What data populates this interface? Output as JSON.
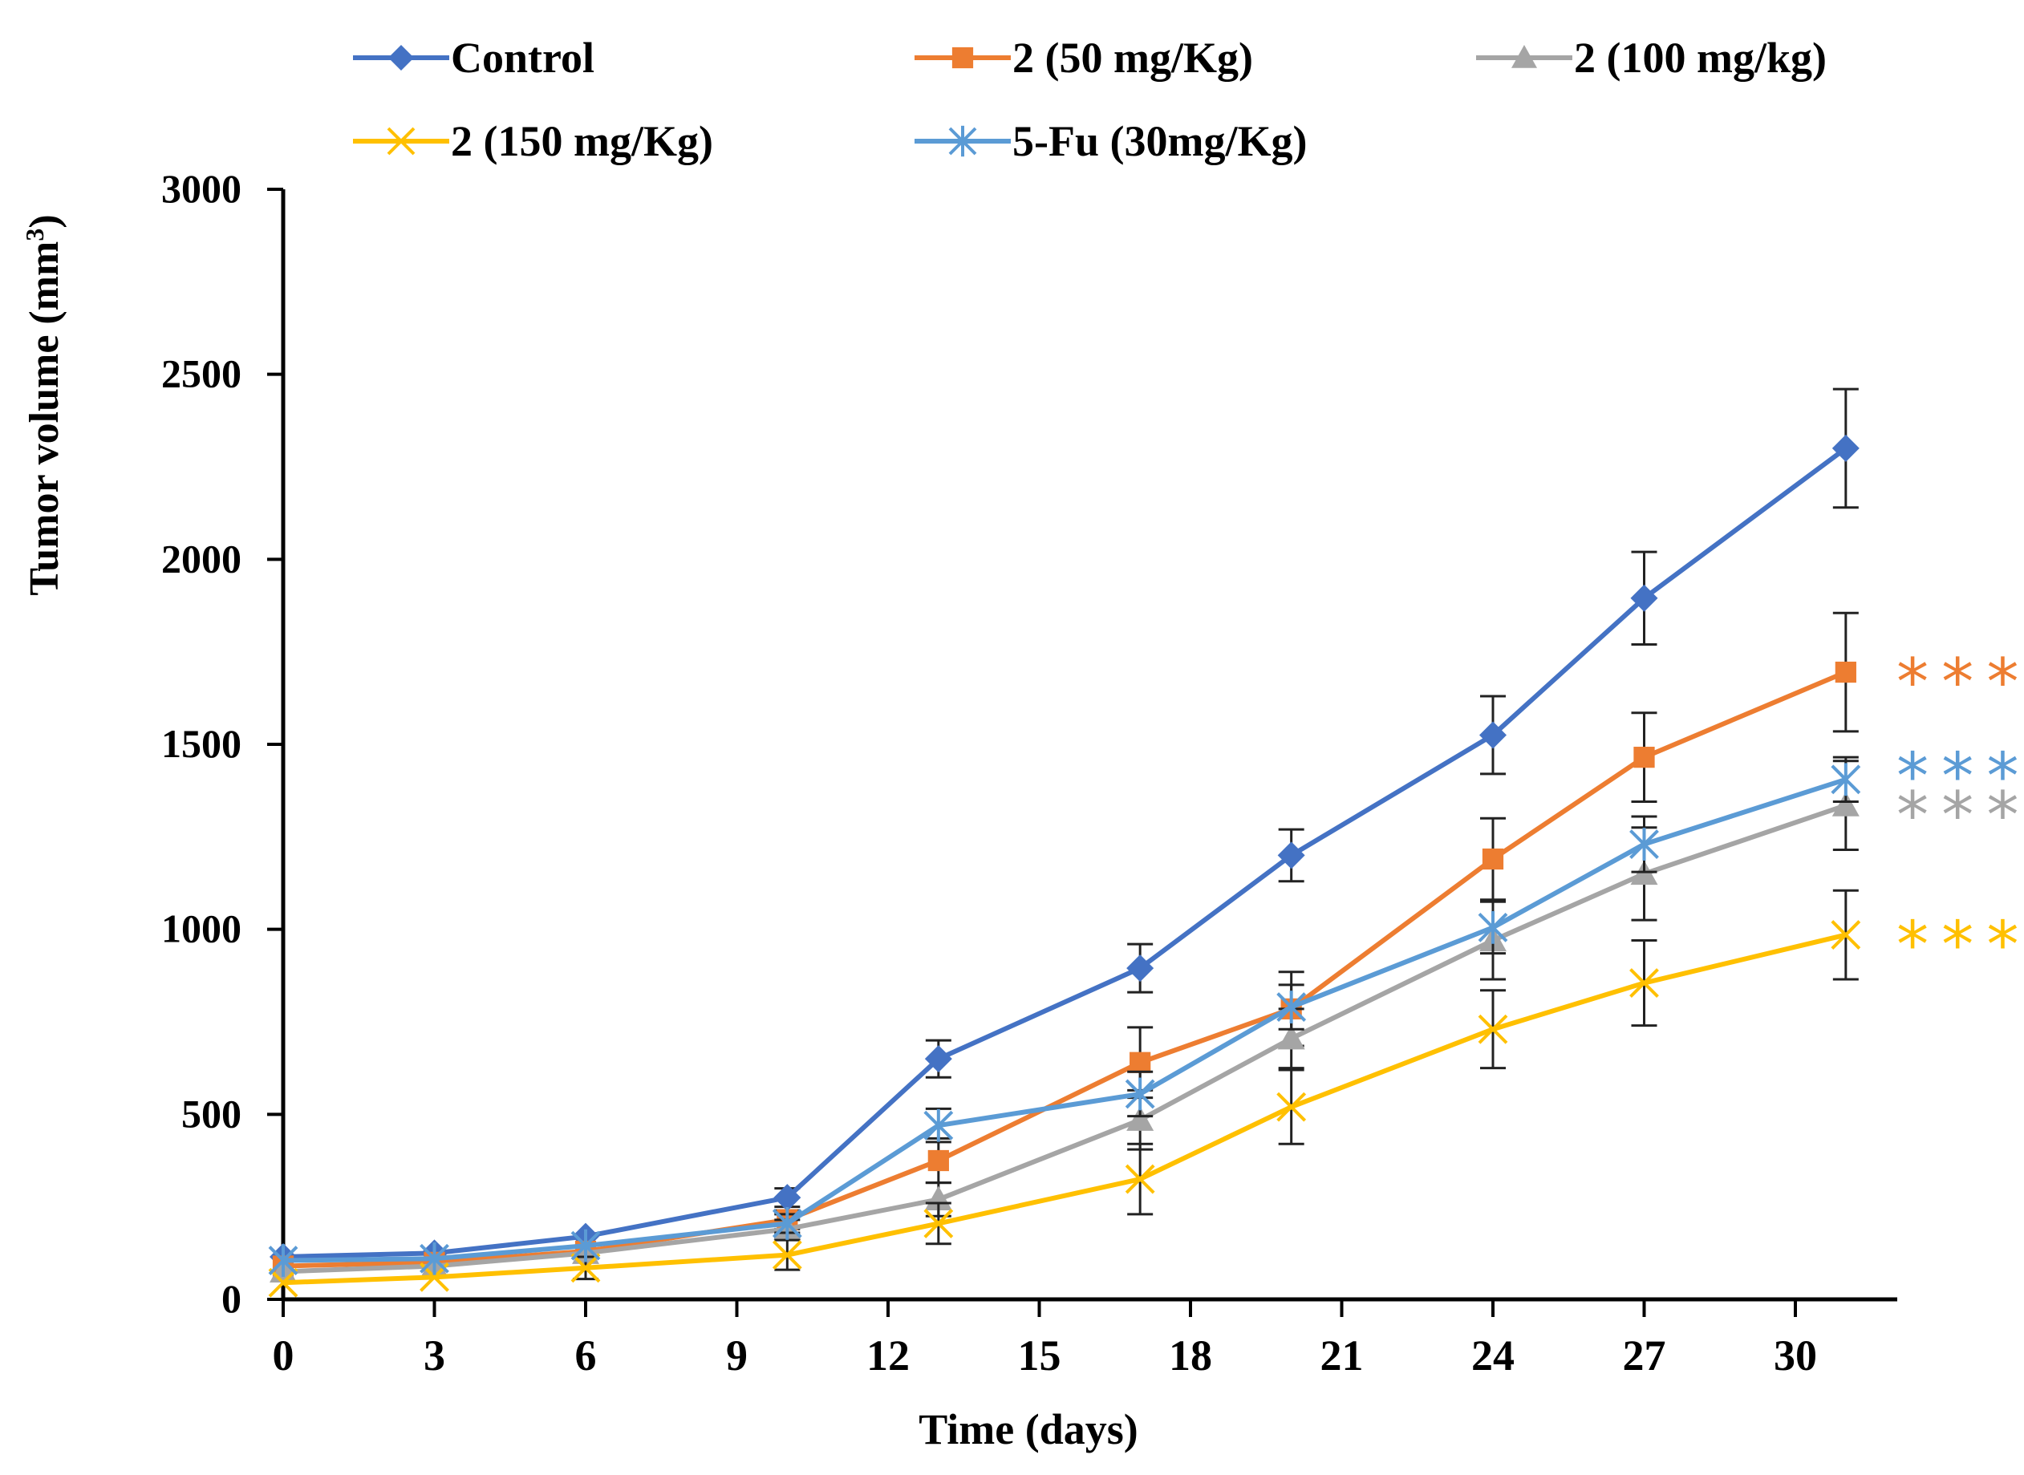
{
  "chart_data": {
    "type": "line",
    "title": "",
    "xlabel": "Time (days)",
    "ylabel": "Tumor volume (mm",
    "ylabel_sup": "3",
    "ylabel_end": ")",
    "xlim": [
      0,
      32
    ],
    "ylim": [
      0,
      3000
    ],
    "x_ticks": [
      0,
      3,
      6,
      9,
      12,
      15,
      18,
      21,
      24,
      27,
      30
    ],
    "y_ticks": [
      0,
      500,
      1000,
      1500,
      2000,
      2500,
      3000
    ],
    "grid": false,
    "legend_position": "top",
    "series": [
      {
        "name": "Control",
        "color": "#4472C4",
        "marker": "diamond",
        "x": [
          0,
          3,
          6,
          10,
          13,
          17,
          20,
          24,
          27,
          31
        ],
        "y": [
          115,
          125,
          170,
          275,
          650,
          895,
          1200,
          1525,
          1895,
          2300
        ],
        "err": [
          0,
          0,
          0,
          25,
          50,
          65,
          70,
          105,
          125,
          160
        ]
      },
      {
        "name": "2 (50 mg/Kg)",
        "color": "#ED7D31",
        "marker": "square",
        "x": [
          0,
          3,
          6,
          10,
          13,
          17,
          20,
          24,
          27,
          31
        ],
        "y": [
          90,
          100,
          130,
          215,
          375,
          640,
          785,
          1190,
          1465,
          1695
        ],
        "err": [
          0,
          0,
          0,
          25,
          60,
          95,
          100,
          110,
          120,
          160
        ]
      },
      {
        "name": "2 (100 mg/kg)",
        "color": "#A5A5A5",
        "marker": "triangle",
        "x": [
          0,
          3,
          6,
          10,
          13,
          17,
          20,
          24,
          27,
          31
        ],
        "y": [
          75,
          90,
          125,
          190,
          270,
          485,
          705,
          970,
          1150,
          1335
        ],
        "err": [
          0,
          0,
          0,
          25,
          45,
          80,
          80,
          105,
          125,
          120
        ]
      },
      {
        "name": "2 (150 mg/Kg)",
        "color": "#FFC000",
        "marker": "x",
        "x": [
          0,
          3,
          6,
          10,
          13,
          17,
          20,
          24,
          27,
          31
        ],
        "y": [
          45,
          60,
          85,
          120,
          205,
          325,
          520,
          730,
          855,
          985
        ],
        "err": [
          0,
          0,
          30,
          40,
          55,
          95,
          100,
          105,
          115,
          120
        ]
      },
      {
        "name": "5-Fu (30mg/Kg)",
        "color": "#5B9BD5",
        "marker": "asterisk",
        "x": [
          0,
          3,
          6,
          10,
          13,
          17,
          20,
          24,
          27,
          31
        ],
        "y": [
          105,
          110,
          145,
          205,
          470,
          555,
          790,
          1005,
          1230,
          1405
        ],
        "err": [
          0,
          0,
          0,
          25,
          45,
          60,
          60,
          70,
          75,
          60
        ]
      }
    ],
    "annotations": [
      {
        "text": "***",
        "color": "#ED7D31",
        "y": 1695
      },
      {
        "text": "***",
        "color": "#5B9BD5",
        "y": 1440
      },
      {
        "text": "***",
        "color": "#A5A5A5",
        "y": 1335
      },
      {
        "text": "***",
        "color": "#FFC000",
        "y": 985
      }
    ]
  }
}
